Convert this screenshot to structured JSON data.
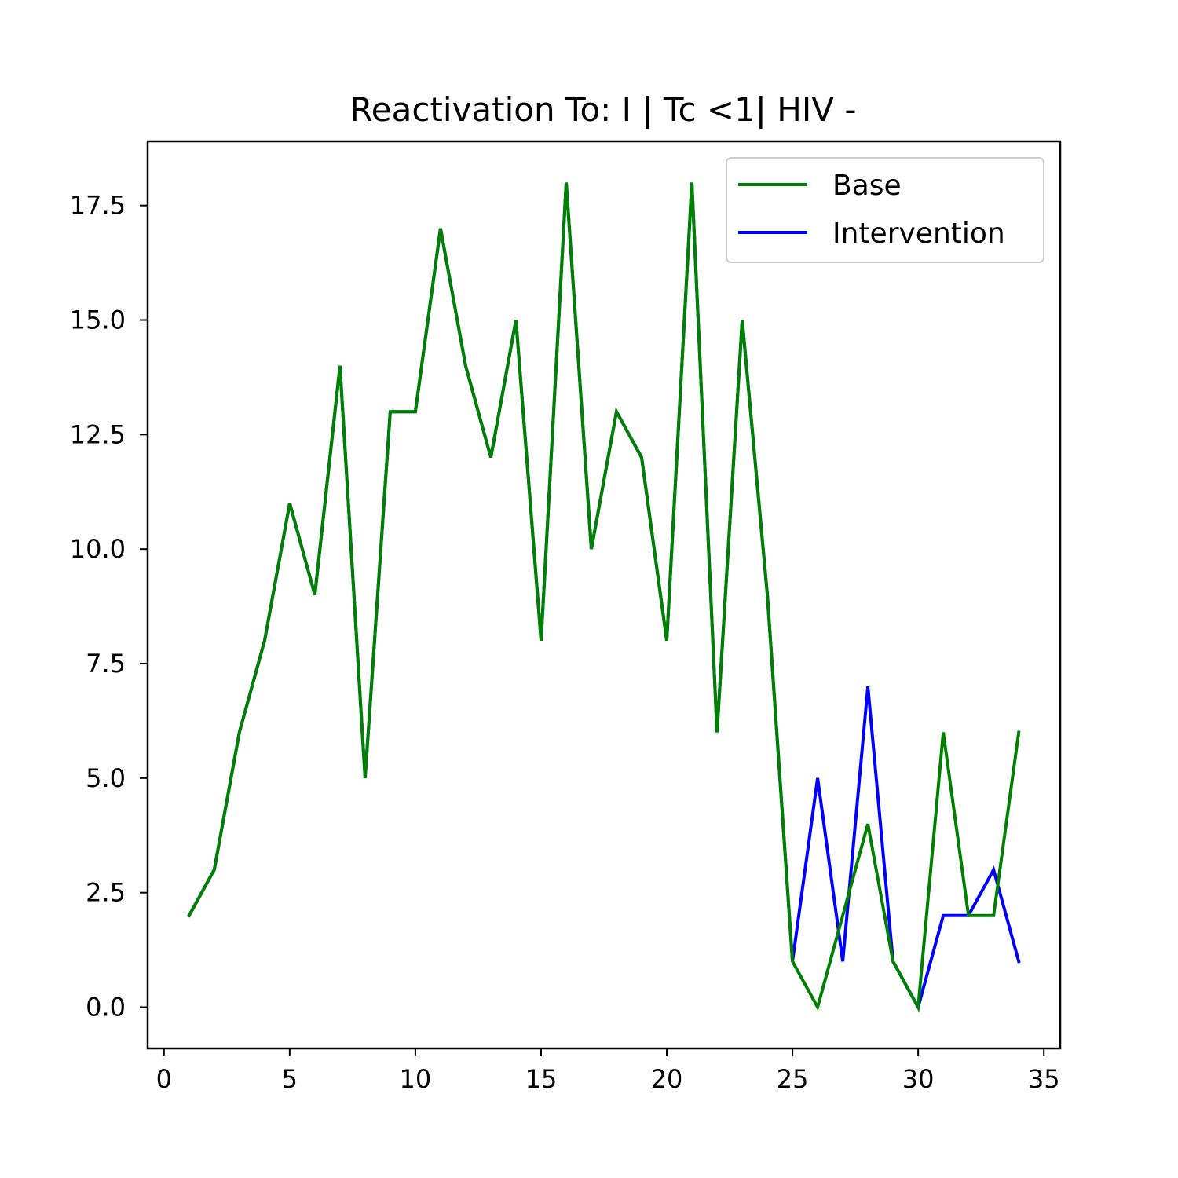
{
  "chart_data": {
    "type": "line",
    "title": "Reactivation To: I | Tc <1| HIV -",
    "xlabel": "",
    "ylabel": "",
    "xlim": [
      -0.65,
      35.65
    ],
    "ylim": [
      -0.9,
      18.9
    ],
    "x_ticks": [
      0,
      5,
      10,
      15,
      20,
      25,
      30,
      35
    ],
    "x_tick_labels": [
      "0",
      "5",
      "10",
      "15",
      "20",
      "25",
      "30",
      "35"
    ],
    "y_ticks": [
      0,
      2.5,
      5,
      7.5,
      10,
      12.5,
      15,
      17.5
    ],
    "y_tick_labels": [
      "0.0",
      "2.5",
      "5.0",
      "7.5",
      "10.0",
      "12.5",
      "15.0",
      "17.5"
    ],
    "grid": false,
    "legend_position": "top-right",
    "x": [
      1,
      2,
      3,
      4,
      5,
      6,
      7,
      8,
      9,
      10,
      11,
      12,
      13,
      14,
      15,
      16,
      17,
      18,
      19,
      20,
      21,
      22,
      23,
      24,
      25,
      26,
      27,
      28,
      29,
      30,
      31,
      32,
      33,
      34
    ],
    "series": [
      {
        "name": "Intervention",
        "color": "#0000ff",
        "values": [
          2,
          3,
          6,
          8,
          11,
          9,
          14,
          5,
          13,
          13,
          17,
          14,
          12,
          15,
          8,
          18,
          10,
          13,
          12,
          8,
          18,
          6,
          15,
          9,
          1,
          5,
          1,
          7,
          1,
          0,
          2,
          2,
          3,
          1
        ]
      },
      {
        "name": "Base",
        "color": "#008000",
        "values": [
          2,
          3,
          6,
          8,
          11,
          9,
          14,
          5,
          13,
          13,
          17,
          14,
          12,
          15,
          8,
          18,
          10,
          13,
          12,
          8,
          18,
          6,
          15,
          9,
          1,
          0,
          2,
          4,
          1,
          0,
          6,
          2,
          2,
          6
        ]
      }
    ],
    "legend_order": [
      "Base",
      "Intervention"
    ]
  }
}
